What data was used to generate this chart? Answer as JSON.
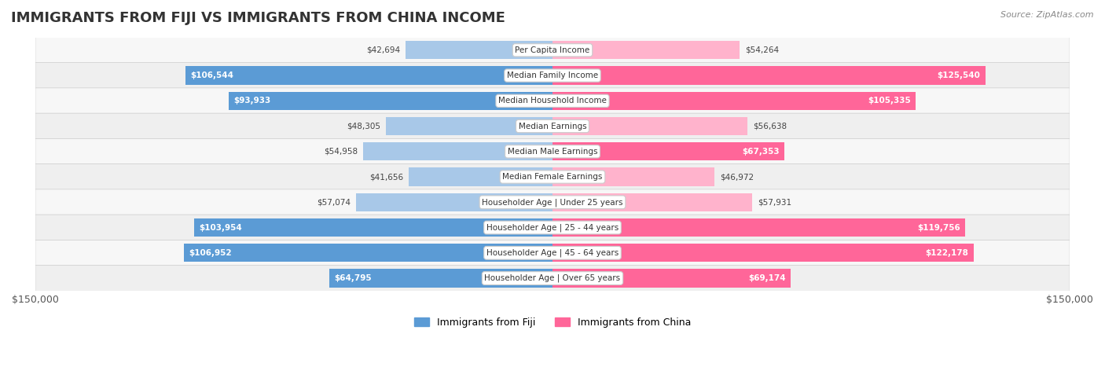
{
  "title": "IMMIGRANTS FROM FIJI VS IMMIGRANTS FROM CHINA INCOME",
  "source": "Source: ZipAtlas.com",
  "categories": [
    "Per Capita Income",
    "Median Family Income",
    "Median Household Income",
    "Median Earnings",
    "Median Male Earnings",
    "Median Female Earnings",
    "Householder Age | Under 25 years",
    "Householder Age | 25 - 44 years",
    "Householder Age | 45 - 64 years",
    "Householder Age | Over 65 years"
  ],
  "fiji_values": [
    42694,
    106544,
    93933,
    48305,
    54958,
    41656,
    57074,
    103954,
    106952,
    64795
  ],
  "china_values": [
    54264,
    125540,
    105335,
    56638,
    67353,
    46972,
    57931,
    119756,
    122178,
    69174
  ],
  "fiji_color_dark": "#5B9BD5",
  "fiji_color_light": "#A8C8E8",
  "china_color_dark": "#FF6699",
  "china_color_light": "#FFB3CC",
  "max_val": 150000,
  "legend_fiji": "Immigrants from Fiji",
  "legend_china": "Immigrants from China",
  "background_color": "#f0f0f0",
  "row_bg_color": "#f5f5f5",
  "row_border_color": "#d0d0d0"
}
